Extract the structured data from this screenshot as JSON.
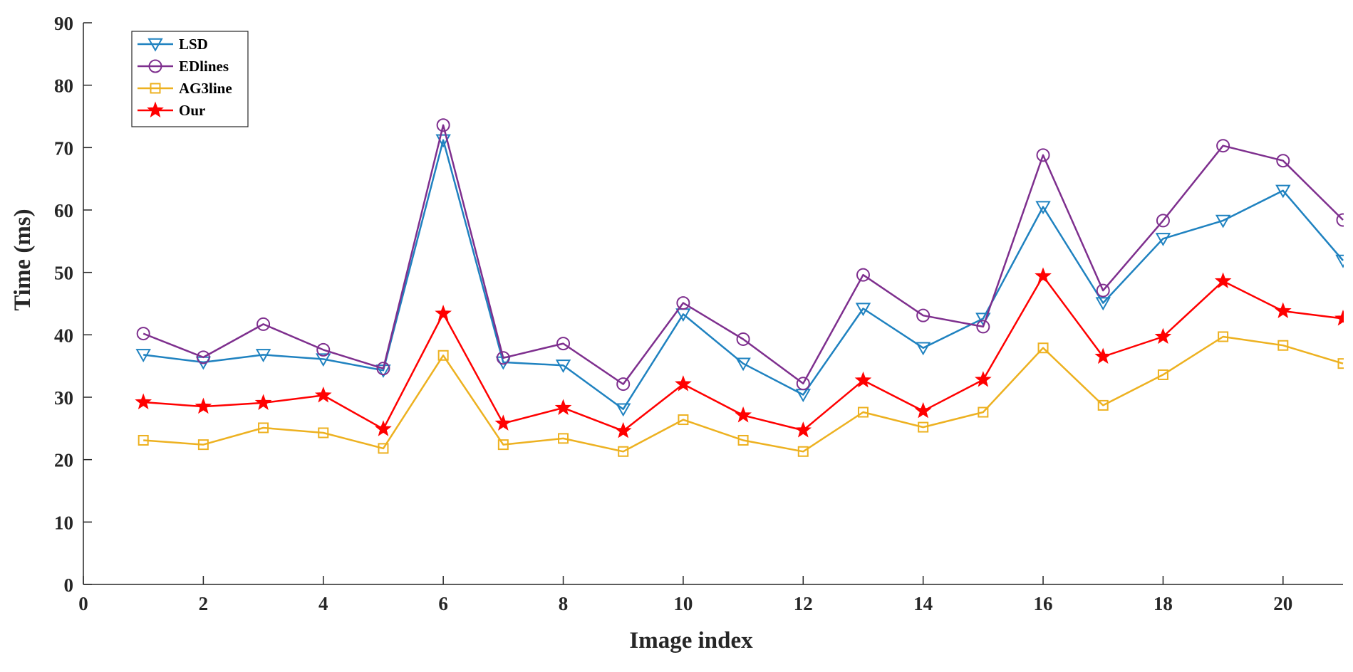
{
  "chart_data": {
    "type": "line",
    "title": "",
    "xlabel": "Image index",
    "ylabel": "Time (ms)",
    "xlim": [
      0,
      21
    ],
    "ylim": [
      0,
      90
    ],
    "xticks": [
      0,
      2,
      4,
      6,
      8,
      10,
      12,
      14,
      16,
      18,
      20
    ],
    "yticks": [
      0,
      10,
      20,
      30,
      40,
      50,
      60,
      70,
      80,
      90
    ],
    "grid": false,
    "legend_position": "top-left",
    "x": [
      1,
      2,
      3,
      4,
      5,
      6,
      7,
      8,
      9,
      10,
      11,
      12,
      13,
      14,
      15,
      16,
      17,
      18,
      19,
      20,
      21
    ],
    "series": [
      {
        "name": "LSD",
        "color": "#1f82c0",
        "marker": "triangle-down",
        "values": [
          36.8,
          35.6,
          36.8,
          36.1,
          34.3,
          71.2,
          35.6,
          35.1,
          28.1,
          43.3,
          35.4,
          30.4,
          44.2,
          37.9,
          42.6,
          60.5,
          45.1,
          55.4,
          58.3,
          63.1,
          51.9
        ]
      },
      {
        "name": "EDlines",
        "color": "#7e2f8e",
        "marker": "circle",
        "values": [
          40.2,
          36.4,
          41.7,
          37.6,
          34.6,
          73.6,
          36.3,
          38.6,
          32.1,
          45.1,
          39.3,
          32.2,
          49.6,
          43.1,
          41.3,
          68.8,
          47.1,
          58.3,
          70.3,
          67.9,
          58.4
        ]
      },
      {
        "name": "AG3line",
        "color": "#edb120",
        "marker": "square",
        "values": [
          23.1,
          22.4,
          25.1,
          24.3,
          21.8,
          36.7,
          22.4,
          23.4,
          21.3,
          26.4,
          23.1,
          21.3,
          27.6,
          25.2,
          27.6,
          37.9,
          28.7,
          33.6,
          39.7,
          38.3,
          35.4
        ]
      },
      {
        "name": "Our",
        "color": "#ff0000",
        "marker": "star",
        "values": [
          29.2,
          28.5,
          29.1,
          30.3,
          24.9,
          43.4,
          25.8,
          28.3,
          24.6,
          32.1,
          27.1,
          24.7,
          32.7,
          27.8,
          32.8,
          49.4,
          36.5,
          39.7,
          48.6,
          43.8,
          42.6
        ]
      }
    ]
  }
}
